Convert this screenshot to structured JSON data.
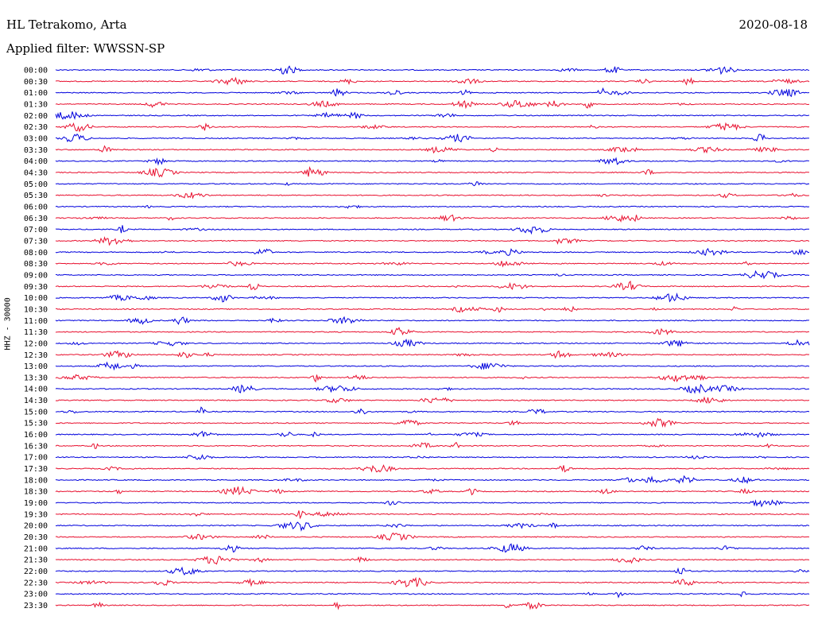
{
  "header": {
    "station": "HL Tetrakomo, Arta",
    "date": "2020-08-18",
    "filter": "Applied filter: WWSSN-SP"
  },
  "channel_label": "HHZ - 30000",
  "colors": {
    "odd": "#0000dd",
    "even": "#e8102f",
    "text": "#000000"
  },
  "rows": [
    "00:00",
    "00:30",
    "01:00",
    "01:30",
    "02:00",
    "02:30",
    "03:00",
    "03:30",
    "04:00",
    "04:30",
    "05:00",
    "05:30",
    "06:00",
    "06:30",
    "07:00",
    "07:30",
    "08:00",
    "08:30",
    "09:00",
    "09:30",
    "10:00",
    "10:30",
    "11:00",
    "11:30",
    "12:00",
    "12:30",
    "13:00",
    "13:30",
    "14:00",
    "14:30",
    "15:00",
    "15:30",
    "16:00",
    "16:30",
    "17:00",
    "17:30",
    "18:00",
    "18:30",
    "19:00",
    "19:30",
    "20:00",
    "20:30",
    "21:00",
    "21:30",
    "22:00",
    "22:30",
    "23:00",
    "23:30"
  ]
}
